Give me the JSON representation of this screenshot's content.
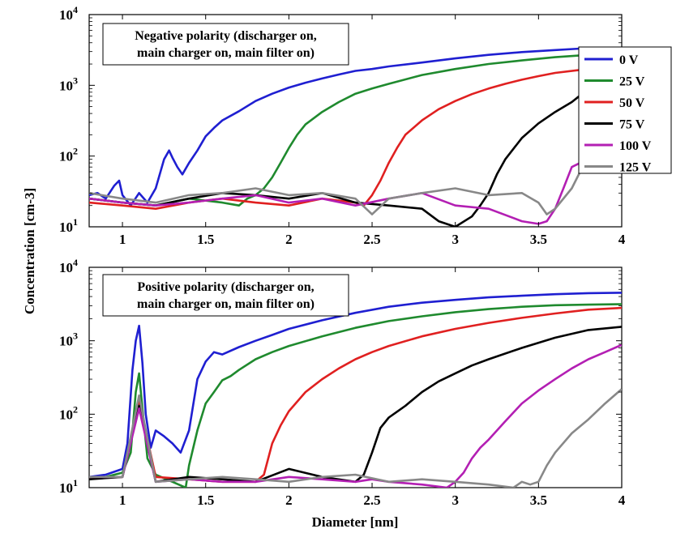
{
  "chart_data": [
    {
      "type": "line",
      "panel": "top",
      "xlabel": "",
      "ylabel": "Concentration [cm-3]",
      "xlim": [
        0.8,
        4
      ],
      "ylim": [
        10,
        10000
      ],
      "yscale": "log",
      "grid": false,
      "x_ticks": [
        "1",
        "1.5",
        "2",
        "2.5",
        "3",
        "3.5",
        "4"
      ],
      "y_ticks": [
        {
          "base": "10",
          "exp": "1"
        },
        {
          "base": "10",
          "exp": "2"
        },
        {
          "base": "10",
          "exp": "3"
        },
        {
          "base": "10",
          "exp": "4"
        }
      ],
      "annotation": [
        "Negative polarity (discharger on,",
        "main charger on, main filter on)"
      ],
      "legend": {
        "position": "top-right"
      },
      "series": [
        {
          "name": "0 V",
          "color": "#1f1fd1",
          "x": [
            0.8,
            0.85,
            0.9,
            0.95,
            0.98,
            1.0,
            1.05,
            1.1,
            1.15,
            1.2,
            1.25,
            1.28,
            1.3,
            1.33,
            1.36,
            1.4,
            1.45,
            1.5,
            1.55,
            1.6,
            1.7,
            1.8,
            1.9,
            2.0,
            2.1,
            2.2,
            2.3,
            2.4,
            2.5,
            2.6,
            2.8,
            3.0,
            3.2,
            3.4,
            3.6,
            3.75
          ],
          "y": [
            28,
            30,
            25,
            38,
            45,
            28,
            20,
            30,
            22,
            35,
            90,
            120,
            95,
            70,
            55,
            80,
            120,
            190,
            250,
            320,
            430,
            600,
            760,
            930,
            1090,
            1250,
            1420,
            1600,
            1700,
            1850,
            2100,
            2400,
            2700,
            2950,
            3150,
            3300
          ]
        },
        {
          "name": "25 V",
          "color": "#1f8a2e",
          "x": [
            0.8,
            1.0,
            1.2,
            1.4,
            1.6,
            1.7,
            1.75,
            1.8,
            1.85,
            1.9,
            1.95,
            2.0,
            2.05,
            2.1,
            2.2,
            2.3,
            2.4,
            2.5,
            2.6,
            2.8,
            3.0,
            3.2,
            3.4,
            3.6,
            3.75
          ],
          "y": [
            25,
            22,
            20,
            25,
            22,
            20,
            25,
            28,
            35,
            50,
            80,
            130,
            200,
            280,
            420,
            580,
            760,
            900,
            1050,
            1400,
            1700,
            2000,
            2250,
            2500,
            2650
          ]
        },
        {
          "name": "50 V",
          "color": "#e02020",
          "x": [
            0.8,
            1.0,
            1.2,
            1.4,
            1.6,
            1.8,
            2.0,
            2.2,
            2.4,
            2.45,
            2.5,
            2.55,
            2.6,
            2.65,
            2.7,
            2.8,
            2.9,
            3.0,
            3.1,
            3.2,
            3.3,
            3.4,
            3.5,
            3.6,
            3.75
          ],
          "y": [
            22,
            20,
            18,
            22,
            25,
            22,
            20,
            25,
            22,
            20,
            28,
            45,
            80,
            130,
            200,
            320,
            460,
            600,
            750,
            900,
            1050,
            1200,
            1350,
            1500,
            1650
          ]
        },
        {
          "name": "75 V",
          "color": "#000000",
          "x": [
            0.8,
            1.0,
            1.2,
            1.4,
            1.6,
            1.8,
            2.0,
            2.2,
            2.4,
            2.6,
            2.8,
            2.9,
            3.0,
            3.1,
            3.15,
            3.2,
            3.25,
            3.3,
            3.4,
            3.5,
            3.6,
            3.7,
            3.75
          ],
          "y": [
            25,
            22,
            20,
            25,
            30,
            28,
            25,
            30,
            22,
            20,
            18,
            12,
            10,
            14,
            20,
            30,
            55,
            90,
            180,
            290,
            420,
            580,
            720
          ]
        },
        {
          "name": "100 V",
          "color": "#b31fb3",
          "x": [
            0.8,
            1.0,
            1.2,
            1.4,
            1.6,
            1.8,
            2.0,
            2.2,
            2.4,
            2.6,
            2.8,
            3.0,
            3.2,
            3.4,
            3.5,
            3.55,
            3.6,
            3.65,
            3.7,
            3.75
          ],
          "y": [
            25,
            22,
            20,
            22,
            25,
            28,
            22,
            25,
            20,
            25,
            30,
            20,
            18,
            12,
            11,
            12,
            18,
            35,
            70,
            80
          ]
        },
        {
          "name": "125 V",
          "color": "#888888",
          "x": [
            0.8,
            1.0,
            1.2,
            1.4,
            1.6,
            1.8,
            2.0,
            2.2,
            2.4,
            2.5,
            2.6,
            2.8,
            3.0,
            3.2,
            3.4,
            3.5,
            3.55,
            3.6,
            3.7,
            3.75
          ],
          "y": [
            30,
            25,
            22,
            28,
            30,
            35,
            28,
            30,
            25,
            15,
            25,
            30,
            35,
            28,
            30,
            22,
            15,
            18,
            35,
            60
          ]
        }
      ]
    },
    {
      "type": "line",
      "panel": "bottom",
      "xlabel": "Diameter [nm]",
      "ylabel": "Concentration [cm-3]",
      "xlim": [
        0.8,
        4
      ],
      "ylim": [
        10,
        10000
      ],
      "yscale": "log",
      "grid": false,
      "x_ticks": [
        "1",
        "1.5",
        "2",
        "2.5",
        "3",
        "3.5",
        "4"
      ],
      "y_ticks": [
        {
          "base": "10",
          "exp": "1"
        },
        {
          "base": "10",
          "exp": "2"
        },
        {
          "base": "10",
          "exp": "3"
        },
        {
          "base": "10",
          "exp": "4"
        }
      ],
      "annotation": [
        "Positive polarity (discharger on,",
        "main charger on, main filter on)"
      ],
      "series": [
        {
          "name": "0 V",
          "color": "#1f1fd1",
          "x": [
            0.8,
            0.9,
            1.0,
            1.03,
            1.06,
            1.08,
            1.1,
            1.12,
            1.14,
            1.17,
            1.2,
            1.25,
            1.3,
            1.35,
            1.4,
            1.45,
            1.5,
            1.55,
            1.6,
            1.7,
            1.8,
            1.9,
            2.0,
            2.2,
            2.4,
            2.6,
            2.8,
            3.0,
            3.2,
            3.4,
            3.6,
            3.8,
            4.0
          ],
          "y": [
            14,
            15,
            18,
            40,
            400,
            1000,
            1600,
            500,
            100,
            35,
            60,
            50,
            40,
            30,
            60,
            300,
            520,
            700,
            650,
            820,
            1000,
            1200,
            1450,
            1900,
            2400,
            2900,
            3300,
            3600,
            3900,
            4100,
            4300,
            4450,
            4500
          ]
        },
        {
          "name": "25 V",
          "color": "#1f8a2e",
          "x": [
            0.8,
            0.9,
            1.0,
            1.05,
            1.08,
            1.1,
            1.12,
            1.15,
            1.2,
            1.3,
            1.38,
            1.4,
            1.45,
            1.5,
            1.55,
            1.6,
            1.65,
            1.7,
            1.8,
            1.9,
            2.0,
            2.2,
            2.4,
            2.6,
            2.8,
            3.0,
            3.2,
            3.4,
            3.6,
            3.8,
            4.0
          ],
          "y": [
            13,
            14,
            16,
            30,
            200,
            360,
            120,
            25,
            15,
            12,
            10,
            20,
            60,
            140,
            200,
            290,
            330,
            400,
            560,
            700,
            850,
            1150,
            1500,
            1850,
            2150,
            2450,
            2700,
            2900,
            3050,
            3100,
            3150
          ]
        },
        {
          "name": "50 V",
          "color": "#e02020",
          "x": [
            0.8,
            1.0,
            1.1,
            1.2,
            1.4,
            1.6,
            1.8,
            1.85,
            1.9,
            1.95,
            2.0,
            2.1,
            2.2,
            2.3,
            2.4,
            2.5,
            2.6,
            2.8,
            3.0,
            3.2,
            3.4,
            3.6,
            3.8,
            4.0
          ],
          "y": [
            14,
            14,
            150,
            14,
            13,
            12,
            12,
            15,
            40,
            70,
            110,
            200,
            300,
            420,
            560,
            700,
            850,
            1150,
            1450,
            1750,
            2050,
            2350,
            2650,
            2800
          ]
        },
        {
          "name": "75 V",
          "color": "#000000",
          "x": [
            0.8,
            1.0,
            1.1,
            1.2,
            1.4,
            1.6,
            1.8,
            2.0,
            2.2,
            2.4,
            2.45,
            2.5,
            2.55,
            2.6,
            2.7,
            2.8,
            2.9,
            3.0,
            3.1,
            3.2,
            3.4,
            3.6,
            3.8,
            4.0
          ],
          "y": [
            13,
            14,
            130,
            12,
            14,
            13,
            12,
            18,
            14,
            12,
            15,
            30,
            65,
            90,
            130,
            200,
            280,
            360,
            460,
            560,
            800,
            1100,
            1400,
            1550
          ]
        },
        {
          "name": "100 V",
          "color": "#b31fb3",
          "x": [
            0.8,
            1.0,
            1.1,
            1.2,
            1.4,
            1.6,
            1.8,
            2.0,
            2.2,
            2.4,
            2.5,
            2.6,
            2.8,
            2.95,
            3.0,
            3.05,
            3.1,
            3.15,
            3.2,
            3.3,
            3.4,
            3.5,
            3.6,
            3.7,
            3.8,
            3.9,
            4.0
          ],
          "y": [
            14,
            14,
            120,
            12,
            13,
            12,
            12,
            14,
            13,
            12,
            13,
            12,
            11,
            10,
            12,
            16,
            25,
            35,
            45,
            80,
            140,
            210,
            300,
            420,
            560,
            700,
            880
          ]
        },
        {
          "name": "125 V",
          "color": "#888888",
          "x": [
            0.8,
            1.0,
            1.1,
            1.2,
            1.4,
            1.6,
            1.8,
            2.0,
            2.2,
            2.4,
            2.6,
            2.8,
            3.0,
            3.2,
            3.35,
            3.4,
            3.45,
            3.5,
            3.55,
            3.6,
            3.7,
            3.8,
            3.9,
            4.0
          ],
          "y": [
            14,
            14,
            180,
            12,
            13,
            14,
            13,
            12,
            14,
            15,
            12,
            13,
            12,
            11,
            10,
            12,
            11,
            12,
            20,
            30,
            55,
            85,
            140,
            220
          ]
        }
      ]
    }
  ]
}
